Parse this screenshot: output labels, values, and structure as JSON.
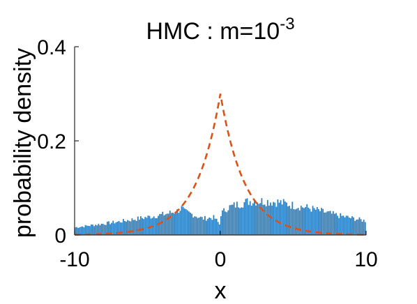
{
  "chart_data": {
    "type": "bar",
    "title": {
      "prefix": "HMC : m=10",
      "superscript": "-3"
    },
    "xlabel": "x",
    "ylabel": "probability density",
    "xlim": [
      -10,
      10
    ],
    "ylim": [
      0,
      0.4
    ],
    "x_ticks": [
      -10,
      0,
      10
    ],
    "x_tick_labels": [
      "-10",
      "0",
      "10"
    ],
    "y_ticks": [
      0,
      0.2,
      0.4
    ],
    "y_tick_labels": [
      "0",
      "0.2",
      "0.4"
    ],
    "grid": false,
    "legend": "none",
    "histogram": {
      "bin_width": 0.1,
      "x_start": -10,
      "color": "#2a7fc0",
      "density_profile": [
        [
          -10,
          0.016
        ],
        [
          -9,
          0.02
        ],
        [
          -8,
          0.024
        ],
        [
          -7,
          0.028
        ],
        [
          -6,
          0.033
        ],
        [
          -5,
          0.038
        ],
        [
          -4,
          0.043
        ],
        [
          -3,
          0.05
        ],
        [
          -2.6,
          0.058
        ],
        [
          -2.5,
          0.05
        ],
        [
          -2,
          0.045
        ],
        [
          -1.2,
          0.035
        ],
        [
          -0.4,
          0.037
        ],
        [
          -0.1,
          0.025
        ],
        [
          0,
          0.02
        ],
        [
          0.05,
          0.045
        ],
        [
          0.5,
          0.058
        ],
        [
          1,
          0.063
        ],
        [
          2,
          0.072
        ],
        [
          3,
          0.072
        ],
        [
          4,
          0.07
        ],
        [
          5,
          0.063
        ],
        [
          6,
          0.058
        ],
        [
          7,
          0.05
        ],
        [
          8,
          0.042
        ],
        [
          9,
          0.036
        ],
        [
          10,
          0.03
        ]
      ]
    },
    "series": [
      {
        "style": "dashed",
        "color": "#d95319",
        "function": "laplace",
        "peak_density": 0.3,
        "scale": 1.667
      }
    ]
  }
}
